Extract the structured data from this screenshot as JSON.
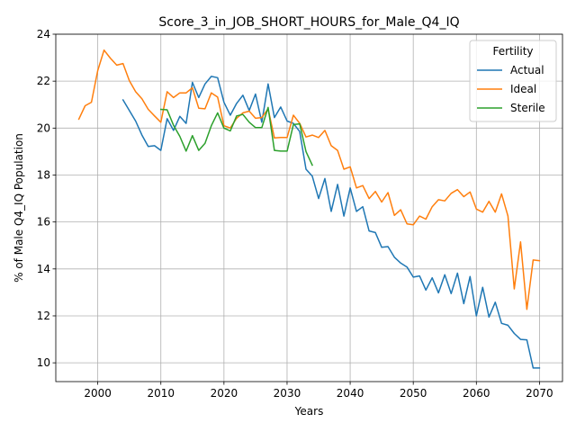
{
  "chart_data": {
    "type": "line",
    "title": "Score_3_in_JOB_SHORT_HOURS_for_Male_Q4_IQ",
    "xlabel": "Years",
    "ylabel": "% of Male Q4_IQ Population",
    "xlim": [
      1993.35,
      2073.65
    ],
    "ylim": [
      9.2,
      24.0
    ],
    "xticks": [
      2000,
      2010,
      2020,
      2030,
      2040,
      2050,
      2060,
      2070
    ],
    "yticks": [
      10,
      12,
      14,
      16,
      18,
      20,
      22,
      24
    ],
    "grid": true,
    "legend": {
      "title": "Fertility",
      "placement": "top-right"
    },
    "series": [
      {
        "name": "Actual",
        "color": "#1f77b4",
        "x": [
          2004,
          2005,
          2006,
          2007,
          2008,
          2009,
          2010,
          2011,
          2012,
          2013,
          2014,
          2015,
          2016,
          2017,
          2018,
          2019,
          2020,
          2021,
          2022,
          2023,
          2024,
          2025,
          2026,
          2027,
          2028,
          2029,
          2030,
          2031,
          2032,
          2033,
          2034,
          2035,
          2036,
          2037,
          2038,
          2039,
          2040,
          2041,
          2042,
          2043,
          2044,
          2045,
          2046,
          2047,
          2048,
          2049,
          2050,
          2051,
          2052,
          2053,
          2054,
          2055,
          2056,
          2057,
          2058,
          2059,
          2060,
          2061,
          2062,
          2063,
          2064,
          2065,
          2066,
          2067,
          2068,
          2069,
          2070
        ],
        "values": [
          21.2,
          20.75,
          20.3,
          19.7,
          19.22,
          19.25,
          19.05,
          20.4,
          19.9,
          20.5,
          20.2,
          21.95,
          21.3,
          21.88,
          22.2,
          22.15,
          21.1,
          20.55,
          21.05,
          21.4,
          20.75,
          21.45,
          20.25,
          21.88,
          20.45,
          20.9,
          20.3,
          20.2,
          19.85,
          18.25,
          17.95,
          17.0,
          17.85,
          16.45,
          17.6,
          16.25,
          17.45,
          16.45,
          16.65,
          15.62,
          15.55,
          14.92,
          14.95,
          14.5,
          14.25,
          14.08,
          13.65,
          13.7,
          13.1,
          13.62,
          12.98,
          13.75,
          12.95,
          13.82,
          12.52,
          13.68,
          12.0,
          13.22,
          11.95,
          12.58,
          11.68,
          11.6,
          11.25,
          11.0,
          10.98,
          9.78,
          9.78
        ]
      },
      {
        "name": "Ideal",
        "color": "#ff7f0e",
        "x": [
          1997,
          1998,
          1999,
          2000,
          2001,
          2002,
          2003,
          2004,
          2005,
          2006,
          2007,
          2008,
          2009,
          2010,
          2011,
          2012,
          2013,
          2014,
          2015,
          2016,
          2017,
          2018,
          2019,
          2020,
          2021,
          2022,
          2023,
          2024,
          2025,
          2026,
          2027,
          2028,
          2029,
          2030,
          2031,
          2032,
          2033,
          2034,
          2035,
          2036,
          2037,
          2038,
          2039,
          2040,
          2041,
          2042,
          2043,
          2044,
          2045,
          2046,
          2047,
          2048,
          2049,
          2050,
          2051,
          2052,
          2053,
          2054,
          2055,
          2056,
          2057,
          2058,
          2059,
          2060,
          2061,
          2062,
          2063,
          2064,
          2065,
          2066,
          2067,
          2068,
          2069,
          2070
        ],
        "values": [
          20.38,
          20.95,
          21.1,
          22.45,
          23.32,
          22.98,
          22.68,
          22.75,
          22.02,
          21.55,
          21.25,
          20.8,
          20.52,
          20.25,
          21.55,
          21.3,
          21.5,
          21.5,
          21.72,
          20.85,
          20.82,
          21.5,
          21.32,
          20.1,
          20.0,
          20.42,
          20.65,
          20.72,
          20.42,
          20.45,
          20.82,
          19.58,
          19.6,
          19.6,
          20.55,
          20.2,
          19.62,
          19.7,
          19.6,
          19.9,
          19.25,
          19.05,
          18.25,
          18.35,
          17.45,
          17.55,
          17.0,
          17.3,
          16.85,
          17.25,
          16.28,
          16.52,
          15.92,
          15.88,
          16.25,
          16.12,
          16.65,
          16.95,
          16.9,
          17.22,
          17.38,
          17.08,
          17.28,
          16.55,
          16.42,
          16.88,
          16.42,
          17.2,
          16.25,
          13.15,
          15.15,
          12.28,
          14.38,
          14.35
        ]
      },
      {
        "name": "Sterile",
        "color": "#2ca02c",
        "x": [
          2010,
          2011,
          2012,
          2013,
          2014,
          2015,
          2016,
          2017,
          2018,
          2019,
          2020,
          2021,
          2022,
          2023,
          2024,
          2025,
          2026,
          2027,
          2028,
          2029,
          2030,
          2031,
          2032,
          2033,
          2034
        ],
        "values": [
          20.8,
          20.78,
          20.12,
          19.65,
          19.02,
          19.68,
          19.05,
          19.35,
          20.1,
          20.65,
          20.0,
          19.88,
          20.52,
          20.58,
          20.25,
          20.02,
          20.02,
          20.88,
          19.05,
          19.02,
          19.02,
          20.15,
          20.18,
          19.0,
          18.42
        ]
      }
    ]
  }
}
